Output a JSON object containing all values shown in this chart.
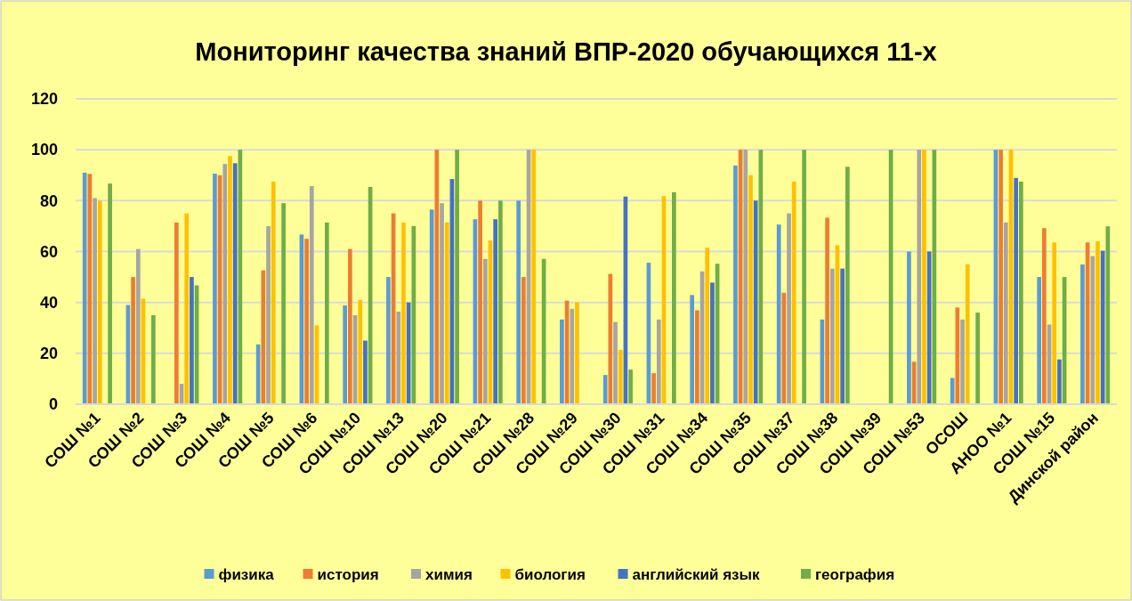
{
  "chart_data": {
    "type": "bar",
    "title": "Мониторинг качества знаний ВПР-2020 обучающихся 11-х",
    "categories": [
      "СОШ №1",
      "СОШ №2",
      "СОШ №3",
      "СОШ №4",
      "СОШ №5",
      "СОШ №6",
      "СОШ №10",
      "СОШ №13",
      "СОШ №20",
      "СОШ №21",
      "СОШ №28",
      "СОШ №29",
      "СОШ №30",
      "СОШ №31",
      "СОШ №34",
      "СОШ №35",
      "СОШ №37",
      "СОШ №38",
      "СОШ №39",
      "СОШ №53",
      "ОСОШ",
      "АНОО №1",
      "СОШ №15",
      "Динской район"
    ],
    "series": [
      {
        "name": "физика",
        "color": "#5b9bd5",
        "values": [
          91,
          39,
          null,
          90.6,
          23.5,
          66.7,
          38.8,
          50,
          76.5,
          72.7,
          80,
          33.3,
          11.5,
          55.6,
          42.9,
          93.8,
          70.6,
          33.3,
          null,
          60,
          10.3,
          100,
          50,
          54.9
        ]
      },
      {
        "name": "история",
        "color": "#ed7d31",
        "values": [
          90.5,
          50,
          71.4,
          90,
          52.6,
          65,
          61,
          75,
          100,
          80,
          50,
          40.7,
          51.2,
          12.2,
          36.9,
          100,
          43.8,
          73.3,
          null,
          16.7,
          38,
          100,
          69.2,
          63.6
        ]
      },
      {
        "name": "химия",
        "color": "#a5a5a5",
        "values": [
          81,
          61,
          8,
          94.4,
          70,
          85.7,
          35,
          36.4,
          79,
          57.1,
          100,
          37.5,
          32.3,
          33.3,
          52.2,
          100,
          75,
          53.3,
          null,
          100,
          33.3,
          71.4,
          31.3,
          58.2
        ]
      },
      {
        "name": "биология",
        "color": "#ffc000",
        "values": [
          80,
          41.5,
          75,
          97.5,
          87.5,
          31,
          41,
          71.4,
          71.4,
          64.3,
          100,
          40,
          21.4,
          81.8,
          61.5,
          90,
          87.5,
          62.5,
          null,
          100,
          55,
          100,
          63.6,
          64
        ]
      },
      {
        "name": "английский язык",
        "color": "#4472c4",
        "values": [
          null,
          null,
          50,
          94.7,
          null,
          null,
          25,
          40,
          88.5,
          72.7,
          null,
          null,
          81.6,
          null,
          47.8,
          80,
          null,
          53.3,
          null,
          60,
          null,
          88.9,
          17.6,
          60.3
        ]
      },
      {
        "name": "география",
        "color": "#70ad47",
        "values": [
          86.7,
          35,
          46.7,
          100,
          79,
          71.4,
          85.4,
          70,
          100,
          80,
          57.1,
          null,
          13.6,
          83.3,
          55.2,
          100,
          100,
          93.3,
          100,
          100,
          36,
          87.5,
          50,
          69.9
        ]
      }
    ],
    "ylim": [
      0,
      120
    ],
    "yticks": [
      0,
      20,
      40,
      60,
      80,
      100,
      120
    ],
    "grid": "y",
    "legend": "bottom"
  }
}
